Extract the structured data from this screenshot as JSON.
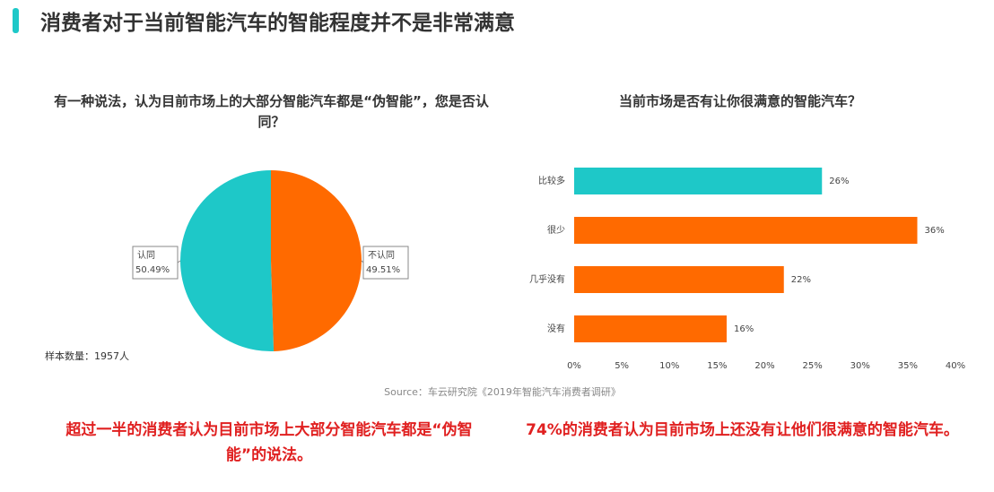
{
  "title": "消费者对于当前智能汽车的智能程度并不是非常满意",
  "chart_data": [
    {
      "type": "pie",
      "title": "有一种说法，认为目前市场上的大部分智能汽车都是“伪智能”，您是否认同？",
      "categories": [
        "认同",
        "不认同"
      ],
      "values": [
        50.49,
        49.51
      ],
      "value_labels": [
        "50.49%",
        "49.51%"
      ],
      "colors": [
        "#1ec8c8",
        "#ff6a00"
      ],
      "note": "样本数量：1957人"
    },
    {
      "type": "bar",
      "orientation": "horizontal",
      "title": "当前市场是否有让你很满意的智能汽车？",
      "categories": [
        "比较多",
        "很少",
        "几乎没有",
        "没有"
      ],
      "values": [
        26,
        36,
        22,
        16
      ],
      "value_labels": [
        "26%",
        "36%",
        "22%",
        "16%"
      ],
      "colors": [
        "#1ec8c8",
        "#ff6a00",
        "#ff6a00",
        "#ff6a00"
      ],
      "xlim": [
        0,
        40
      ],
      "xticks": [
        {
          "value": 0,
          "label": "0%"
        },
        {
          "value": 5,
          "label": "5%"
        },
        {
          "value": 10,
          "label": "10%"
        },
        {
          "value": 15,
          "label": "15%"
        },
        {
          "value": 20,
          "label": "20%"
        },
        {
          "value": 25,
          "label": "25%"
        },
        {
          "value": 30,
          "label": "30%"
        },
        {
          "value": 35,
          "label": "35%"
        },
        {
          "value": 40,
          "label": "40%"
        }
      ]
    }
  ],
  "source": "Source：车云研究院《2019年智能汽车消费者调研》",
  "conclusions": [
    "超过一半的消费者认为目前市场上大部分智能汽车都是“伪智能”的说法。",
    "74%的消费者认为目前市场上还没有让他们很满意的智能汽车。"
  ]
}
